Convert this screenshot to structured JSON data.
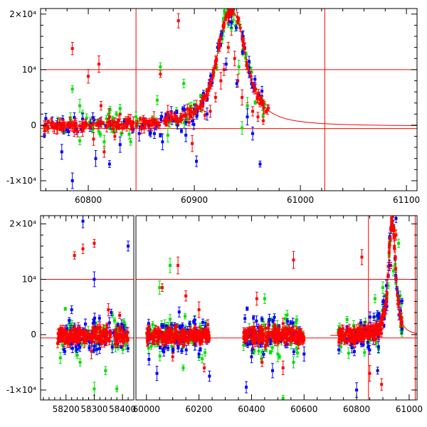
{
  "chart_data": [
    {
      "type": "scatter",
      "title": "",
      "xlabel": "",
      "ylabel": "",
      "xlim": [
        60755,
        61110
      ],
      "ylim": [
        -11800,
        21000
      ],
      "x_ticks": [
        60800,
        60900,
        61000,
        61100
      ],
      "x_tick_labels": [
        "60800",
        "60900",
        "61000",
        "61100"
      ],
      "y_ticks": [
        -10000,
        0,
        10000,
        20000
      ],
      "y_tick_labels": [
        "-1×10⁴",
        "0",
        "10⁴",
        "2×10⁴"
      ],
      "reference_lines": {
        "horizontal": [
          10000,
          -600
        ],
        "vertical": [
          60845,
          61023
        ]
      },
      "model_curve": {
        "description": "single-lens peak model",
        "baseline": -200,
        "peak_x": 60935,
        "peak_y": 20500,
        "x_range": [
          60755,
          61110
        ]
      },
      "series": [
        {
          "name": "red",
          "color": "#ff0000",
          "points": [
            [
              60785,
              13800
            ],
            [
              60800,
              8800
            ],
            [
              60810,
              11000
            ],
            [
              60812,
              3500
            ],
            [
              60820,
              1500
            ],
            [
              60830,
              2000
            ],
            [
              60840,
              600
            ],
            [
              60852,
              1100
            ],
            [
              60868,
              9200
            ],
            [
              60875,
              2300
            ],
            [
              60885,
              18800
            ],
            [
              60895,
              500
            ],
            [
              60790,
              -1200
            ],
            [
              60805,
              -2500
            ],
            [
              60815,
              -4800
            ],
            [
              60825,
              -2000
            ],
            [
              60862,
              1000
            ],
            [
              60882,
              1800
            ],
            [
              60898,
              -3300
            ],
            [
              60910,
              1800
            ],
            [
              60915,
              2500
            ],
            [
              60920,
              5000
            ],
            [
              60925,
              8000
            ],
            [
              60928,
              10000
            ],
            [
              60932,
              14000
            ],
            [
              60935,
              17500
            ],
            [
              60938,
              12000
            ],
            [
              60941,
              8000
            ],
            [
              60945,
              5000
            ],
            [
              60950,
              3500
            ],
            [
              60955,
              2500
            ],
            [
              60960,
              1500
            ],
            [
              60965,
              800
            ]
          ]
        },
        {
          "name": "green",
          "color": "#00e000",
          "points": [
            [
              60785,
              6500
            ],
            [
              60792,
              3500
            ],
            [
              60830,
              3000
            ],
            [
              60845,
              1500
            ],
            [
              60868,
              10500
            ],
            [
              60865,
              4500
            ],
            [
              60890,
              7500
            ],
            [
              60935,
              17500
            ],
            [
              60942,
              10500
            ],
            [
              60950,
              3500
            ],
            [
              60792,
              -2800
            ],
            [
              60815,
              -3000
            ],
            [
              60840,
              -3000
            ],
            [
              60875,
              -1800
            ],
            [
              60945,
              -500
            ]
          ]
        },
        {
          "name": "blue",
          "color": "#0000ff",
          "points": [
            [
              60785,
              -10000
            ],
            [
              60807,
              -6000
            ],
            [
              60820,
              -7000
            ],
            [
              60830,
              -3500
            ],
            [
              60848,
              -1500
            ],
            [
              60870,
              -3000
            ],
            [
              60892,
              -1800
            ],
            [
              60902,
              -6500
            ],
            [
              60912,
              2000
            ],
            [
              60930,
              11000
            ],
            [
              60935,
              18500
            ],
            [
              60940,
              7500
            ],
            [
              60950,
              1500
            ],
            [
              60955,
              -1500
            ],
            [
              60962,
              -7000
            ],
            [
              60775,
              -4800
            ]
          ]
        }
      ]
    },
    {
      "type": "scatter",
      "title": "",
      "xlabel": "",
      "ylabel": "",
      "broken_x_axis": true,
      "segments": [
        {
          "xlim": [
            58110,
            58440
          ],
          "x_ticks": [
            58200,
            58300,
            58400
          ],
          "x_tick_labels": [
            "58200",
            "58300",
            "58400"
          ]
        },
        {
          "xlim": [
            59960,
            61030
          ],
          "x_ticks": [
            60000,
            60200,
            60400,
            60600,
            60800,
            61000
          ],
          "x_tick_labels": [
            "60000",
            "60200",
            "60400",
            "60600",
            "60800",
            "61000"
          ]
        }
      ],
      "ylim": [
        -11800,
        21500
      ],
      "y_ticks": [
        -10000,
        0,
        10000,
        20000
      ],
      "y_tick_labels": [
        "-1×10⁴",
        "0",
        "10⁴",
        "2×10⁴"
      ],
      "reference_lines": {
        "horizontal": [
          10000,
          -600
        ],
        "vertical": [
          60845,
          61023
        ]
      },
      "observing_seasons": [
        {
          "x": [
            58170,
            58420
          ]
        },
        {
          "x": [
            60000,
            60240
          ]
        },
        {
          "x": [
            60370,
            60600
          ]
        },
        {
          "x": [
            60730,
            60975
          ]
        }
      ],
      "model_curve": {
        "description": "single-lens peak model",
        "baseline": -200,
        "peak_x": 60935,
        "peak_y": 20500
      },
      "series": [
        {
          "name": "red",
          "color": "#ff0000",
          "points": [
            [
              58230,
              14300
            ],
            [
              58260,
              15500
            ],
            [
              58300,
              16500
            ],
            [
              58350,
              4500
            ],
            [
              58390,
              3500
            ],
            [
              60060,
              8500
            ],
            [
              60120,
              12500
            ],
            [
              60150,
              7000
            ],
            [
              60200,
              4500
            ],
            [
              60420,
              6500
            ],
            [
              60520,
              2000
            ],
            [
              60560,
              13500
            ],
            [
              60820,
              14000
            ],
            [
              60930,
              12500
            ],
            [
              60950,
              18000
            ],
            [
              58290,
              -3000
            ],
            [
              60100,
              -4000
            ],
            [
              60220,
              -6000
            ],
            [
              60440,
              -5000
            ],
            [
              60520,
              -6000
            ],
            [
              60895,
              -9000
            ],
            [
              60850,
              -7000
            ]
          ]
        },
        {
          "name": "green",
          "color": "#00e000",
          "points": [
            [
              58180,
              -4200
            ],
            [
              58300,
              -9800
            ],
            [
              58380,
              -9800
            ],
            [
              58340,
              -6500
            ],
            [
              58250,
              -5000
            ],
            [
              60050,
              8500
            ],
            [
              60090,
              12500
            ],
            [
              60140,
              -6000
            ],
            [
              60200,
              -4000
            ],
            [
              60450,
              6500
            ],
            [
              60500,
              -3500
            ],
            [
              60520,
              -11500
            ],
            [
              60560,
              -5000
            ],
            [
              60870,
              6500
            ],
            [
              60900,
              8500
            ],
            [
              60940,
              11500
            ],
            [
              60960,
              16500
            ]
          ]
        },
        {
          "name": "blue",
          "color": "#0000ff",
          "points": [
            [
              58260,
              20500
            ],
            [
              58300,
              10000
            ],
            [
              58420,
              16000
            ],
            [
              58220,
              4500
            ],
            [
              58360,
              4000
            ],
            [
              60040,
              -7000
            ],
            [
              60200,
              -3500
            ],
            [
              60240,
              -7500
            ],
            [
              60380,
              -9500
            ],
            [
              60400,
              -4000
            ],
            [
              60480,
              -6500
            ],
            [
              60600,
              -3500
            ],
            [
              60800,
              -10000
            ],
            [
              60880,
              -6500
            ],
            [
              60925,
              12500
            ],
            [
              60950,
              21000
            ]
          ]
        }
      ]
    }
  ]
}
